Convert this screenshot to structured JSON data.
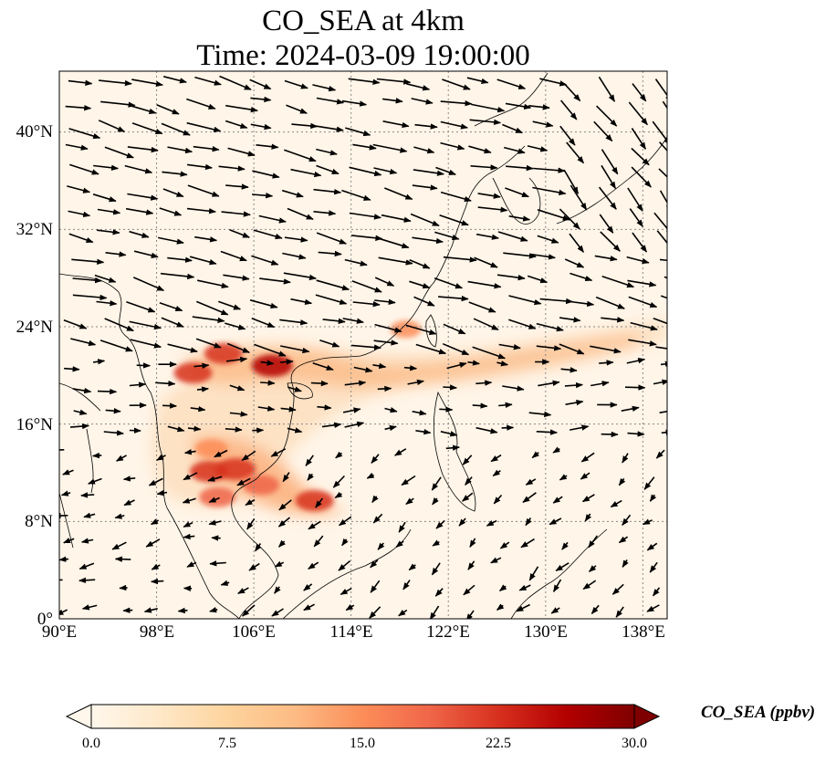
{
  "title_line1": "CO_SEA at 4km",
  "title_line2": "Time: 2024-03-09 19:00:00",
  "map": {
    "extent": {
      "lon_min": 90,
      "lon_max": 140,
      "lat_min": 0,
      "lat_max": 45
    },
    "lat_ticks": [
      {
        "value": 0,
        "label": "0°"
      },
      {
        "value": 8,
        "label": "8°N"
      },
      {
        "value": 16,
        "label": "16°N"
      },
      {
        "value": 24,
        "label": "24°N"
      },
      {
        "value": 32,
        "label": "32°N"
      },
      {
        "value": 40,
        "label": "40°N"
      }
    ],
    "lon_ticks": [
      {
        "value": 90,
        "label": "90°E"
      },
      {
        "value": 98,
        "label": "98°E"
      },
      {
        "value": 106,
        "label": "106°E"
      },
      {
        "value": 114,
        "label": "114°E"
      },
      {
        "value": 122,
        "label": "122°E"
      },
      {
        "value": 130,
        "label": "130°E"
      },
      {
        "value": 138,
        "label": "138°E"
      }
    ],
    "gridlines": true,
    "plume_hotspots": [
      {
        "lon": 107.5,
        "lat": 20.8,
        "value": 25
      },
      {
        "lon": 103.5,
        "lat": 21.8,
        "value": 22
      },
      {
        "lon": 101.0,
        "lat": 20.2,
        "value": 22
      },
      {
        "lon": 111.0,
        "lat": 9.7,
        "value": 22
      },
      {
        "lon": 104.5,
        "lat": 12.3,
        "value": 24
      },
      {
        "lon": 102.3,
        "lat": 12.1,
        "value": 22
      },
      {
        "lon": 106.6,
        "lat": 11.0,
        "value": 20
      },
      {
        "lon": 103.0,
        "lat": 10.0,
        "value": 20
      },
      {
        "lon": 102.5,
        "lat": 14.0,
        "value": 16
      },
      {
        "lon": 118.5,
        "lat": 23.8,
        "value": 14
      }
    ],
    "wind": {
      "description": "wind vectors predominantly westerly/north-westerly"
    }
  },
  "colorbar": {
    "label": "CO_SEA (ppbv)",
    "min": 0.0,
    "max": 30.0,
    "ticks": [
      "0.0",
      "7.5",
      "15.0",
      "22.5",
      "30.0"
    ],
    "colormap": "OrRd",
    "colors": [
      "#fff7ec",
      "#fee8c8",
      "#fdd49e",
      "#fdbb84",
      "#fc8d59",
      "#ef6548",
      "#d7301f",
      "#b30000",
      "#7f0000"
    ],
    "extend": "both"
  }
}
